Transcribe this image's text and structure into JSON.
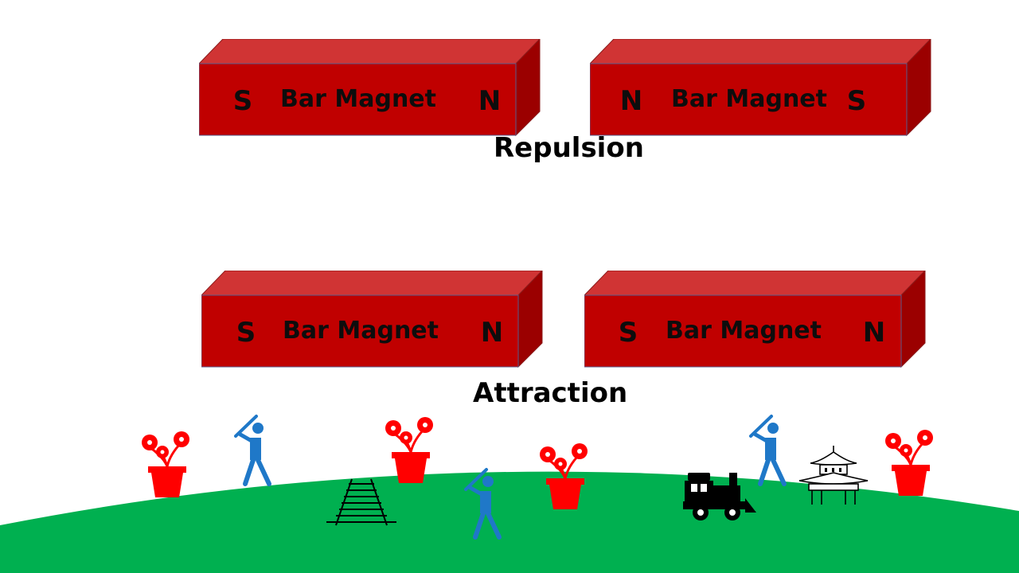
{
  "colors": {
    "magnet_front": "#c00000",
    "magnet_top": "#d03434",
    "magnet_side": "#9b0000",
    "ground": "#00b050",
    "flower": "#ff0000",
    "person": "#1f78c8"
  },
  "repulsion": {
    "label": "Repulsion",
    "magnets": [
      {
        "title": "Bar Magnet",
        "left_pole": "S",
        "right_pole": "N"
      },
      {
        "title": "Bar Magnet",
        "left_pole": "N",
        "right_pole": "S"
      }
    ]
  },
  "attraction": {
    "label": "Attraction",
    "magnets": [
      {
        "title": "Bar Magnet",
        "left_pole": "S",
        "right_pole": "N"
      },
      {
        "title": "Bar Magnet",
        "left_pole": "S",
        "right_pole": "N"
      }
    ]
  },
  "scene_icons": [
    "flower-pot-icon",
    "batter-icon",
    "railway-track-icon",
    "train-icon",
    "pagoda-icon"
  ]
}
